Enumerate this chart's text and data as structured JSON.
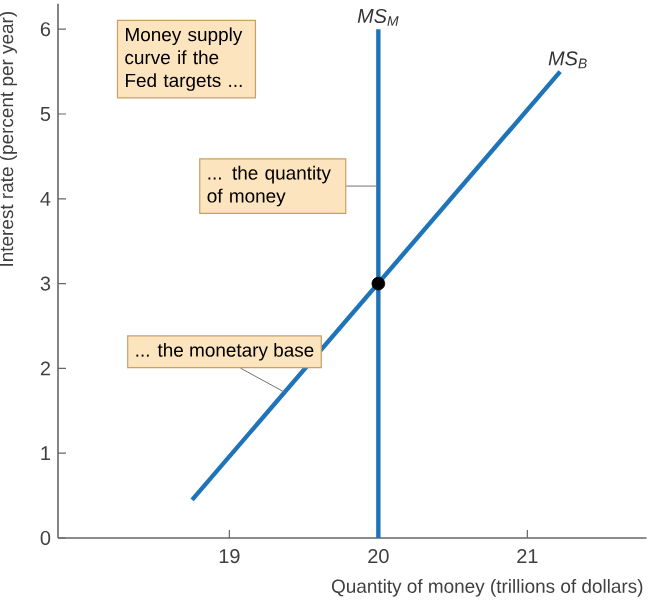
{
  "chart_data": {
    "type": "line",
    "xlabel": "Quantity of money (trillions of dollars)",
    "ylabel": "Interest rate (percent per year)",
    "xlim": [
      17.85,
      21.8
    ],
    "ylim": [
      0,
      6.3
    ],
    "xticks": [
      19,
      20,
      21
    ],
    "yticks": [
      0,
      1,
      2,
      3,
      4,
      5,
      6
    ],
    "series": [
      {
        "name": "MS$_{M}$",
        "color": "#1f74b9",
        "x": [
          20,
          20
        ],
        "values": [
          0,
          6
        ]
      },
      {
        "name": "MS$_{B}$",
        "color": "#1f74b9",
        "x": [
          18.75,
          21.22
        ],
        "values": [
          0.45,
          5.5
        ]
      },
      {
        "type": "scatter",
        "marker": "circle",
        "color": "#000000",
        "x": [
          20
        ],
        "values": [
          3
        ]
      }
    ],
    "annotations": [
      "Money supply curve if the Fed targets ...",
      {
        "text": "... the quantity of money",
        "x": 20,
        "y": 4.15
      },
      {
        "text": "... the monetary base",
        "x": 19.37,
        "y": 1.72
      }
    ]
  }
}
